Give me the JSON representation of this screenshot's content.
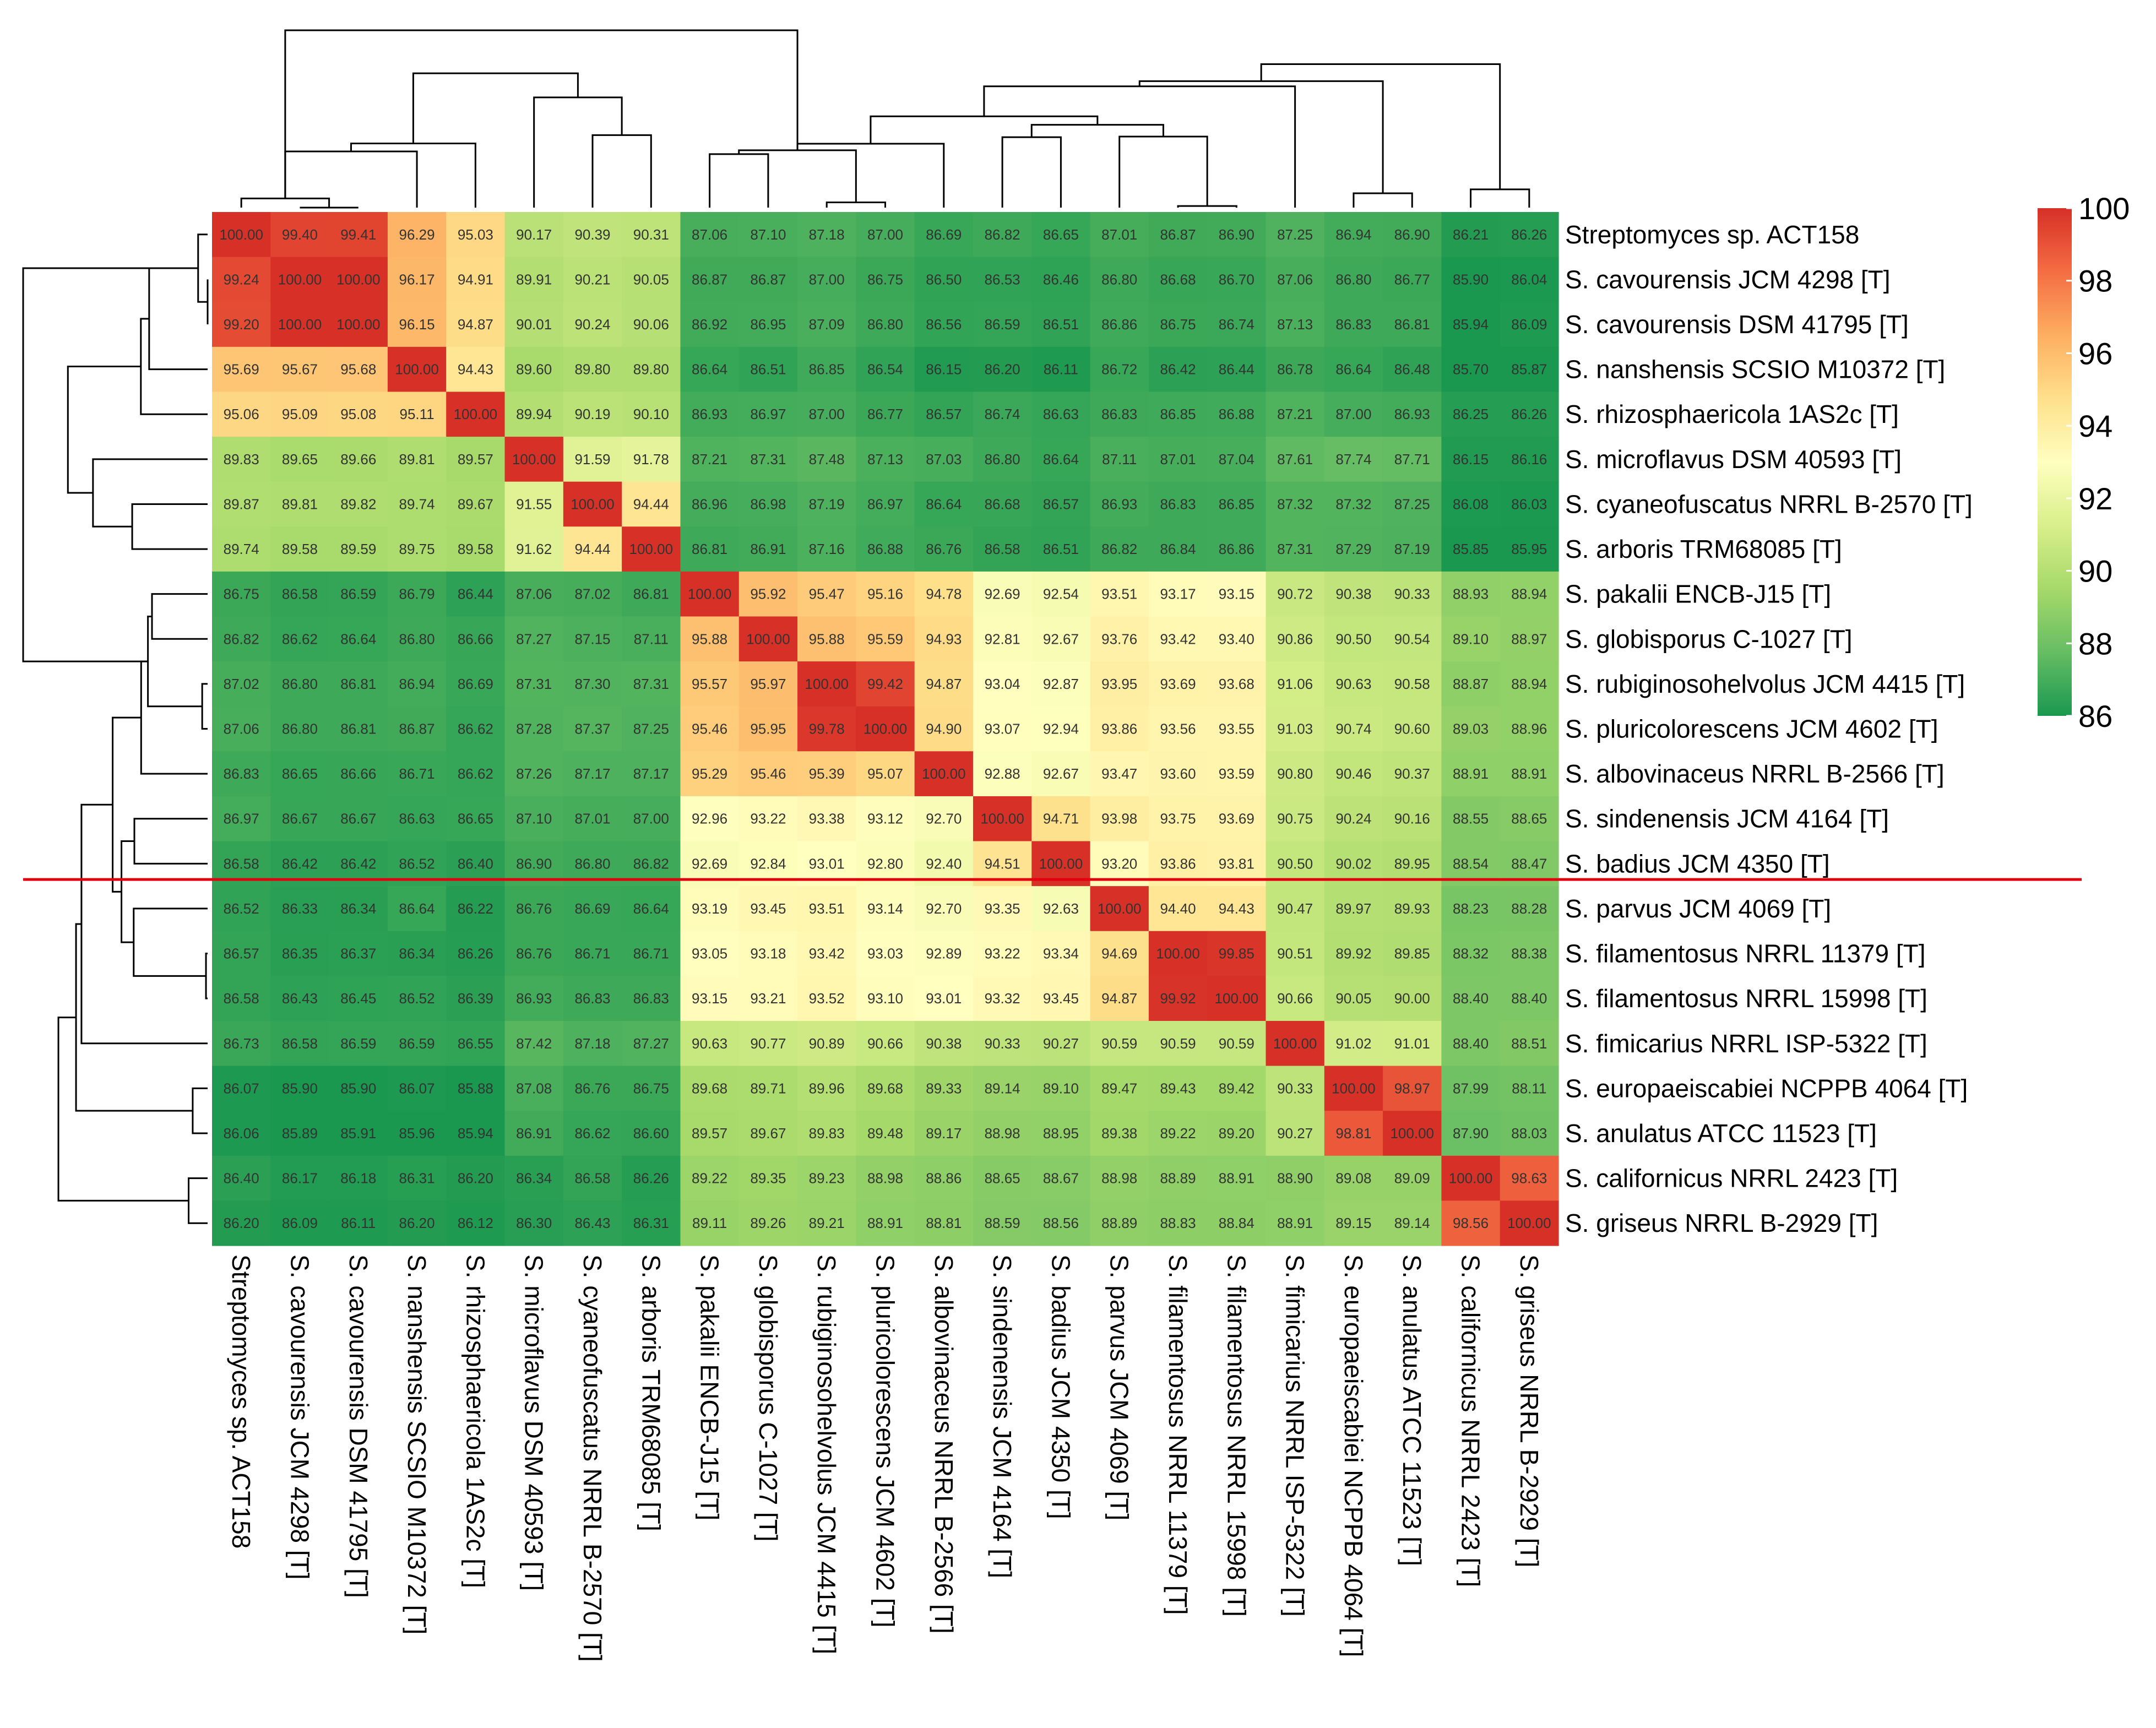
{
  "chart_data": {
    "type": "heatmap",
    "title": "",
    "xlabel": "",
    "ylabel": "",
    "labels": [
      "Streptomyces sp. ACT158",
      "S.  cavourensis JCM 4298 [T]",
      "S.  cavourensis DSM 41795 [T]",
      "S.  nanshensis SCSIO M10372  [T]",
      "S.  rhizosphaericola 1AS2c [T]",
      "S.  microflavus DSM 40593 [T]",
      "S.  cyaneofuscatus NRRL B-2570 [T]",
      "S.  arboris TRM68085 [T]",
      "S.  pakalii ENCB-J15 [T]",
      "S.  globisporus C-1027  [T]",
      "S.  rubiginosohelvolus JCM 4415 [T]",
      "S.  pluricolorescens JCM 4602 [T]",
      "S.  albovinaceus NRRL B-2566 [T]",
      "S.  sindenensis JCM 4164 [T]",
      "S.  badius JCM 4350 [T]",
      "S.  parvus JCM 4069 [T]",
      "S.  filamentosus NRRL 11379  [T]",
      "S.  filamentosus NRRL 15998  [T]",
      "S.  fimicarius NRRL ISP-5322 [T]",
      "S.  europaeiscabiei NCPPB 4064  [T]",
      "S.  anulatus ATCC 11523  [T]",
      "S.  californicus NRRL 2423 [T]",
      "S.  griseus NRRL B-2929  [T]"
    ],
    "col_labels": [
      "Streptomyces sp. ACT158",
      "S.  cavourensis JCM 4298 [T]",
      "S.  cavourensis DSM 41795 [T]",
      "S.  nanshensis SCSIO M10372 [T]",
      "S.  rhizosphaericola 1AS2c [T]",
      "S.  microflavus DSM 40593 [T]",
      "S.  cyaneofuscatus NRRL B-2570 [T]",
      "S.  arboris TRM68085 [T]",
      "S.  pakalii ENCB-J15 [T]",
      "S.  globisporus C-1027  [T]",
      "S.  rubiginosohelvolus JCM 4415 [T]",
      "S.  pluricolorescens JCM 4602 [T]",
      "S.  albovinaceus NRRL B-2566 [T]",
      "S.  sindenensis JCM 4164 [T]",
      "S.  badius JCM 4350 [T]",
      "S.  parvus JCM 4069 [T]",
      "S.  filamentosus NRRL 11379  [T]",
      "S.  filamentosus NRRL 15998  [T]",
      "S.  fimicarius NRRL ISP-5322 [T]",
      "S.  europaeiscabiei NCPPB 4064  [T]",
      "S.  anulatus ATCC 11523  [T]",
      "S.  californicus NRRL 2423 [T]",
      "S.  griseus NRRL B-2929  [T]"
    ],
    "values": [
      [
        "100.00",
        "99.40",
        "99.41",
        "96.29",
        "95.03",
        "90.17",
        "90.39",
        "90.31",
        "87.06",
        "87.10",
        "87.18",
        "87.00",
        "86.69",
        "86.82",
        "86.65",
        "87.01",
        "86.87",
        "86.90",
        "87.25",
        "86.94",
        "86.90",
        "86.21",
        "86.26"
      ],
      [
        "99.24",
        "100.00",
        "100.00",
        "96.17",
        "94.91",
        "89.91",
        "90.21",
        "90.05",
        "86.87",
        "86.87",
        "87.00",
        "86.75",
        "86.50",
        "86.53",
        "86.46",
        "86.80",
        "86.68",
        "86.70",
        "87.06",
        "86.80",
        "86.77",
        "85.90",
        "86.04"
      ],
      [
        "99.20",
        "100.00",
        "100.00",
        "96.15",
        "94.87",
        "90.01",
        "90.24",
        "90.06",
        "86.92",
        "86.95",
        "87.09",
        "86.80",
        "86.56",
        "86.59",
        "86.51",
        "86.86",
        "86.75",
        "86.74",
        "87.13",
        "86.83",
        "86.81",
        "85.94",
        "86.09"
      ],
      [
        "95.69",
        "95.67",
        "95.68",
        "100.00",
        "94.43",
        "89.60",
        "89.80",
        "89.80",
        "86.64",
        "86.51",
        "86.85",
        "86.54",
        "86.15",
        "86.20",
        "86.11",
        "86.72",
        "86.42",
        "86.44",
        "86.78",
        "86.64",
        "86.48",
        "85.70",
        "85.87"
      ],
      [
        "95.06",
        "95.09",
        "95.08",
        "95.11",
        "100.00",
        "89.94",
        "90.19",
        "90.10",
        "86.93",
        "86.97",
        "87.00",
        "86.77",
        "86.57",
        "86.74",
        "86.63",
        "86.83",
        "86.85",
        "86.88",
        "87.21",
        "87.00",
        "86.93",
        "86.25",
        "86.26"
      ],
      [
        "89.83",
        "89.65",
        "89.66",
        "89.81",
        "89.57",
        "100.00",
        "91.59",
        "91.78",
        "87.21",
        "87.31",
        "87.48",
        "87.13",
        "87.03",
        "86.80",
        "86.64",
        "87.11",
        "87.01",
        "87.04",
        "87.61",
        "87.74",
        "87.71",
        "86.15",
        "86.16"
      ],
      [
        "89.87",
        "89.81",
        "89.82",
        "89.74",
        "89.67",
        "91.55",
        "100.00",
        "94.44",
        "86.96",
        "86.98",
        "87.19",
        "86.97",
        "86.64",
        "86.68",
        "86.57",
        "86.93",
        "86.83",
        "86.85",
        "87.32",
        "87.32",
        "87.25",
        "86.08",
        "86.03"
      ],
      [
        "89.74",
        "89.58",
        "89.59",
        "89.75",
        "89.58",
        "91.62",
        "94.44",
        "100.00",
        "86.81",
        "86.91",
        "87.16",
        "86.88",
        "86.76",
        "86.58",
        "86.51",
        "86.82",
        "86.84",
        "86.86",
        "87.31",
        "87.29",
        "87.19",
        "85.85",
        "85.95"
      ],
      [
        "86.75",
        "86.58",
        "86.59",
        "86.79",
        "86.44",
        "87.06",
        "87.02",
        "86.81",
        "100.00",
        "95.92",
        "95.47",
        "95.16",
        "94.78",
        "92.69",
        "92.54",
        "93.51",
        "93.17",
        "93.15",
        "90.72",
        "90.38",
        "90.33",
        "88.93",
        "88.94"
      ],
      [
        "86.82",
        "86.62",
        "86.64",
        "86.80",
        "86.66",
        "87.27",
        "87.15",
        "87.11",
        "95.88",
        "100.00",
        "95.88",
        "95.59",
        "94.93",
        "92.81",
        "92.67",
        "93.76",
        "93.42",
        "93.40",
        "90.86",
        "90.50",
        "90.54",
        "89.10",
        "88.97"
      ],
      [
        "87.02",
        "86.80",
        "86.81",
        "86.94",
        "86.69",
        "87.31",
        "87.30",
        "87.31",
        "95.57",
        "95.97",
        "100.00",
        "99.42",
        "94.87",
        "93.04",
        "92.87",
        "93.95",
        "93.69",
        "93.68",
        "91.06",
        "90.63",
        "90.58",
        "88.87",
        "88.94"
      ],
      [
        "87.06",
        "86.80",
        "86.81",
        "86.87",
        "86.62",
        "87.28",
        "87.37",
        "87.25",
        "95.46",
        "95.95",
        "99.78",
        "100.00",
        "94.90",
        "93.07",
        "92.94",
        "93.86",
        "93.56",
        "93.55",
        "91.03",
        "90.74",
        "90.60",
        "89.03",
        "88.96"
      ],
      [
        "86.83",
        "86.65",
        "86.66",
        "86.71",
        "86.62",
        "87.26",
        "87.17",
        "87.17",
        "95.29",
        "95.46",
        "95.39",
        "95.07",
        "100.00",
        "92.88",
        "92.67",
        "93.47",
        "93.60",
        "93.59",
        "90.80",
        "90.46",
        "90.37",
        "88.91",
        "88.91"
      ],
      [
        "86.97",
        "86.67",
        "86.67",
        "86.63",
        "86.65",
        "87.10",
        "87.01",
        "87.00",
        "92.96",
        "93.22",
        "93.38",
        "93.12",
        "92.70",
        "100.00",
        "94.71",
        "93.98",
        "93.75",
        "93.69",
        "90.75",
        "90.24",
        "90.16",
        "88.55",
        "88.65"
      ],
      [
        "86.58",
        "86.42",
        "86.42",
        "86.52",
        "86.40",
        "86.90",
        "86.80",
        "86.82",
        "92.69",
        "92.84",
        "93.01",
        "92.80",
        "92.40",
        "94.51",
        "100.00",
        "93.20",
        "93.86",
        "93.81",
        "90.50",
        "90.02",
        "89.95",
        "88.54",
        "88.47"
      ],
      [
        "86.52",
        "86.33",
        "86.34",
        "86.64",
        "86.22",
        "86.76",
        "86.69",
        "86.64",
        "93.19",
        "93.45",
        "93.51",
        "93.14",
        "92.70",
        "93.35",
        "92.63",
        "100.00",
        "94.40",
        "94.43",
        "90.47",
        "89.97",
        "89.93",
        "88.23",
        "88.28"
      ],
      [
        "86.57",
        "86.35",
        "86.37",
        "86.34",
        "86.26",
        "86.76",
        "86.71",
        "86.71",
        "93.05",
        "93.18",
        "93.42",
        "93.03",
        "92.89",
        "93.22",
        "93.34",
        "94.69",
        "100.00",
        "99.85",
        "90.51",
        "89.92",
        "89.85",
        "88.32",
        "88.38"
      ],
      [
        "86.58",
        "86.43",
        "86.45",
        "86.52",
        "86.39",
        "86.93",
        "86.83",
        "86.83",
        "93.15",
        "93.21",
        "93.52",
        "93.10",
        "93.01",
        "93.32",
        "93.45",
        "94.87",
        "99.92",
        "100.00",
        "90.66",
        "90.05",
        "90.00",
        "88.40",
        "88.40"
      ],
      [
        "86.73",
        "86.58",
        "86.59",
        "86.59",
        "86.55",
        "87.42",
        "87.18",
        "87.27",
        "90.63",
        "90.77",
        "90.89",
        "90.66",
        "90.38",
        "90.33",
        "90.27",
        "90.59",
        "90.59",
        "90.59",
        "100.00",
        "91.02",
        "91.01",
        "88.40",
        "88.51"
      ],
      [
        "86.07",
        "85.90",
        "85.90",
        "86.07",
        "85.88",
        "87.08",
        "86.76",
        "86.75",
        "89.68",
        "89.71",
        "89.96",
        "89.68",
        "89.33",
        "89.14",
        "89.10",
        "89.47",
        "89.43",
        "89.42",
        "90.33",
        "100.00",
        "98.97",
        "87.99",
        "88.11"
      ],
      [
        "86.06",
        "85.89",
        "85.91",
        "85.96",
        "85.94",
        "86.91",
        "86.62",
        "86.60",
        "89.57",
        "89.67",
        "89.83",
        "89.48",
        "89.17",
        "88.98",
        "88.95",
        "89.38",
        "89.22",
        "89.20",
        "90.27",
        "98.81",
        "100.00",
        "87.90",
        "88.03"
      ],
      [
        "86.40",
        "86.17",
        "86.18",
        "86.31",
        "86.20",
        "86.34",
        "86.58",
        "86.26",
        "89.22",
        "89.35",
        "89.23",
        "88.98",
        "88.86",
        "88.65",
        "88.67",
        "88.98",
        "88.89",
        "88.91",
        "88.90",
        "89.08",
        "89.09",
        "100.00",
        "98.63"
      ],
      [
        "86.20",
        "86.09",
        "86.11",
        "86.20",
        "86.12",
        "86.30",
        "86.43",
        "86.31",
        "89.11",
        "89.26",
        "89.21",
        "88.91",
        "88.81",
        "88.59",
        "88.56",
        "88.89",
        "88.83",
        "88.84",
        "88.91",
        "89.15",
        "89.14",
        "98.56",
        "100.00"
      ]
    ],
    "color_scale": {
      "min": 86,
      "max": 100,
      "ticks": [
        "100",
        "98",
        "96",
        "94",
        "92",
        "90",
        "88",
        "86"
      ],
      "colors": [
        "#1a9850",
        "#66bd63",
        "#a6d96a",
        "#d9ef8b",
        "#ffffbf",
        "#fee08b",
        "#fdae61",
        "#f46d43",
        "#d73027"
      ]
    },
    "cutoff_line": {
      "between_rows": [
        14,
        15
      ],
      "color": "#e3000f"
    },
    "dendrogram": {
      "order": [
        0,
        1,
        2,
        3,
        4,
        5,
        6,
        7,
        8,
        9,
        10,
        11,
        12,
        13,
        14,
        15,
        16,
        17,
        18,
        19,
        20,
        21,
        22
      ],
      "merges": [
        [
          1,
          2,
          0.0
        ],
        [
          16,
          17,
          0.12
        ],
        [
          10,
          11,
          0.4
        ],
        [
          19,
          20,
          1.1
        ],
        [
          21,
          22,
          1.4
        ],
        [
          0,
          1,
          0.7
        ],
        [
          6,
          7,
          5.56
        ],
        [
          8,
          9,
          4.1
        ],
        [
          13,
          14,
          5.4
        ],
        [
          15,
          16,
          5.45
        ],
        [
          3,
          0,
          4.31
        ],
        [
          5,
          6,
          8.45
        ],
        [
          8,
          10,
          4.4
        ],
        [
          12,
          8,
          4.9
        ],
        [
          4,
          3,
          4.92
        ],
        [
          13,
          15,
          6.35
        ],
        [
          12,
          13,
          7.0
        ],
        [
          18,
          12,
          9.3
        ],
        [
          19,
          18,
          9.7
        ],
        [
          5,
          4,
          10.3
        ],
        [
          21,
          19,
          11.0
        ],
        [
          0,
          8,
          13.6
        ]
      ]
    }
  }
}
